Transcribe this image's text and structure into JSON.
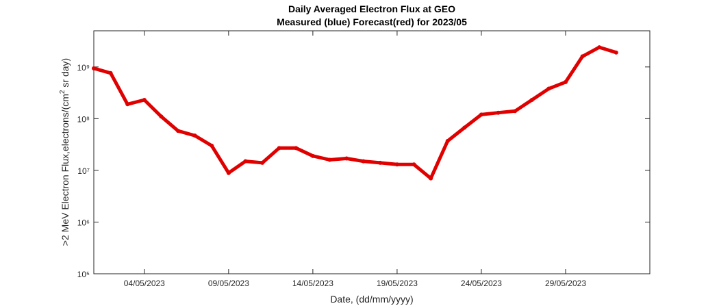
{
  "chart_data": {
    "type": "line",
    "title": "Daily Averaged Electron Flux at GEO",
    "subtitle": "Measured (blue) Forecast(red) for 2023/05",
    "xlabel": "Date, (dd/mm/yyyy)",
    "ylabel": [
      ">2 MeV Electron Flux,electrons/(cm",
      "2",
      " sr day)"
    ],
    "yscale": "log",
    "x": [
      "2023-05-01",
      "2023-05-02",
      "2023-05-03",
      "2023-05-04",
      "2023-05-05",
      "2023-05-06",
      "2023-05-07",
      "2023-05-08",
      "2023-05-09",
      "2023-05-10",
      "2023-05-11",
      "2023-05-12",
      "2023-05-13",
      "2023-05-14",
      "2023-05-15",
      "2023-05-16",
      "2023-05-17",
      "2023-05-18",
      "2023-05-19",
      "2023-05-20",
      "2023-05-21",
      "2023-05-22",
      "2023-05-23",
      "2023-05-24",
      "2023-05-25",
      "2023-05-26",
      "2023-05-27",
      "2023-05-28",
      "2023-05-29",
      "2023-05-30",
      "2023-05-31",
      "2023-06-01"
    ],
    "series": [
      {
        "color": "#e00000",
        "values": [
          940000000,
          760000000,
          190000000,
          230000000,
          110000000,
          58000000,
          47000000,
          30000000,
          8900000,
          15000000,
          14000000,
          27000000,
          27000000,
          19000000,
          16000000,
          17000000,
          15000000,
          14000000,
          13000000,
          13000000,
          7000000,
          37000000,
          67000000,
          120000000,
          130000000,
          140000000,
          230000000,
          380000000,
          510000000,
          1600000000,
          2400000000,
          1900000000
        ]
      }
    ],
    "xlim": [
      "2023-05-01",
      "2023-06-03"
    ],
    "xticks": [
      {
        "value": "2023-05-04",
        "label": "04/05/2023"
      },
      {
        "value": "2023-05-09",
        "label": "09/05/2023"
      },
      {
        "value": "2023-05-14",
        "label": "14/05/2023"
      },
      {
        "value": "2023-05-19",
        "label": "19/05/2023"
      },
      {
        "value": "2023-05-24",
        "label": "24/05/2023"
      },
      {
        "value": "2023-05-29",
        "label": "29/05/2023"
      }
    ],
    "ylim": [
      100000,
      5000000000
    ],
    "yticks": [
      {
        "value": 100000,
        "label": "10⁵"
      },
      {
        "value": 1000000,
        "label": "10⁶"
      },
      {
        "value": 10000000,
        "label": "10⁷"
      },
      {
        "value": 100000000,
        "label": "10⁸"
      },
      {
        "value": 1000000000,
        "label": "10⁹"
      }
    ]
  }
}
